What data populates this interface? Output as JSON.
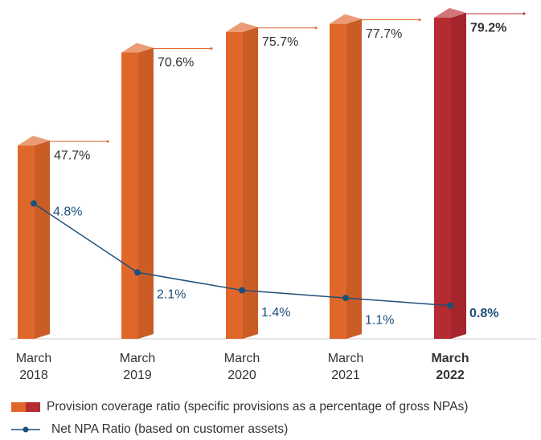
{
  "chart_data": {
    "type": "bar-line",
    "categories": [
      "March 2018",
      "March 2019",
      "March 2020",
      "March 2021",
      "March 2022"
    ],
    "series": [
      {
        "name": "Provision coverage ratio (specific provisions as a percentage of gross NPAs)",
        "type": "bar",
        "color": "#e0672a",
        "colors": [
          "#e0672a",
          "#e0672a",
          "#e0672a",
          "#e0672a",
          "#b62a31"
        ],
        "values": [
          47.7,
          70.6,
          75.7,
          77.7,
          79.2
        ],
        "value_labels": [
          "47.7%",
          "70.6%",
          "75.7%",
          "77.7%",
          "79.2%"
        ]
      },
      {
        "name": "Net NPA Ratio (based on customer assets)",
        "type": "line",
        "axis": "y2",
        "color": "#1d4f7c",
        "values": [
          4.8,
          2.1,
          1.4,
          1.1,
          0.8
        ],
        "value_labels": [
          "4.8%",
          "2.1%",
          "1.4%",
          "1.1%",
          "0.8%"
        ]
      }
    ],
    "ylim": [
      0,
      80
    ],
    "y2lim": [
      -0.5,
      12.2
    ]
  }
}
